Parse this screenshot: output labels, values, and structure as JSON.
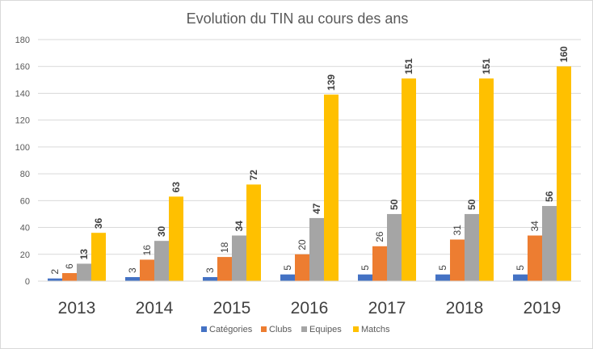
{
  "chart_data": {
    "type": "bar",
    "title": "Evolution du TIN au cours des ans",
    "categories": [
      "2013",
      "2014",
      "2015",
      "2016",
      "2017",
      "2018",
      "2019"
    ],
    "series": [
      {
        "name": "Catégories",
        "color": "#4472C4",
        "values": [
          2,
          3,
          3,
          5,
          5,
          5,
          5
        ],
        "label_bold": false
      },
      {
        "name": "Clubs",
        "color": "#ED7D31",
        "values": [
          6,
          16,
          18,
          20,
          26,
          31,
          34
        ],
        "label_bold": false
      },
      {
        "name": "Equipes",
        "color": "#A5A5A5",
        "values": [
          13,
          30,
          34,
          47,
          50,
          50,
          56
        ],
        "label_bold": true
      },
      {
        "name": "Matchs",
        "color": "#FFC000",
        "values": [
          36,
          63,
          72,
          139,
          151,
          151,
          160
        ],
        "label_bold": true
      }
    ],
    "y_ticks": [
      "0",
      "20",
      "40",
      "60",
      "80",
      "100",
      "120",
      "140",
      "160",
      "180"
    ],
    "ylim": [
      0,
      180
    ],
    "grid": true,
    "legend_position": "bottom",
    "gridline_color": "#d9d9d9"
  }
}
